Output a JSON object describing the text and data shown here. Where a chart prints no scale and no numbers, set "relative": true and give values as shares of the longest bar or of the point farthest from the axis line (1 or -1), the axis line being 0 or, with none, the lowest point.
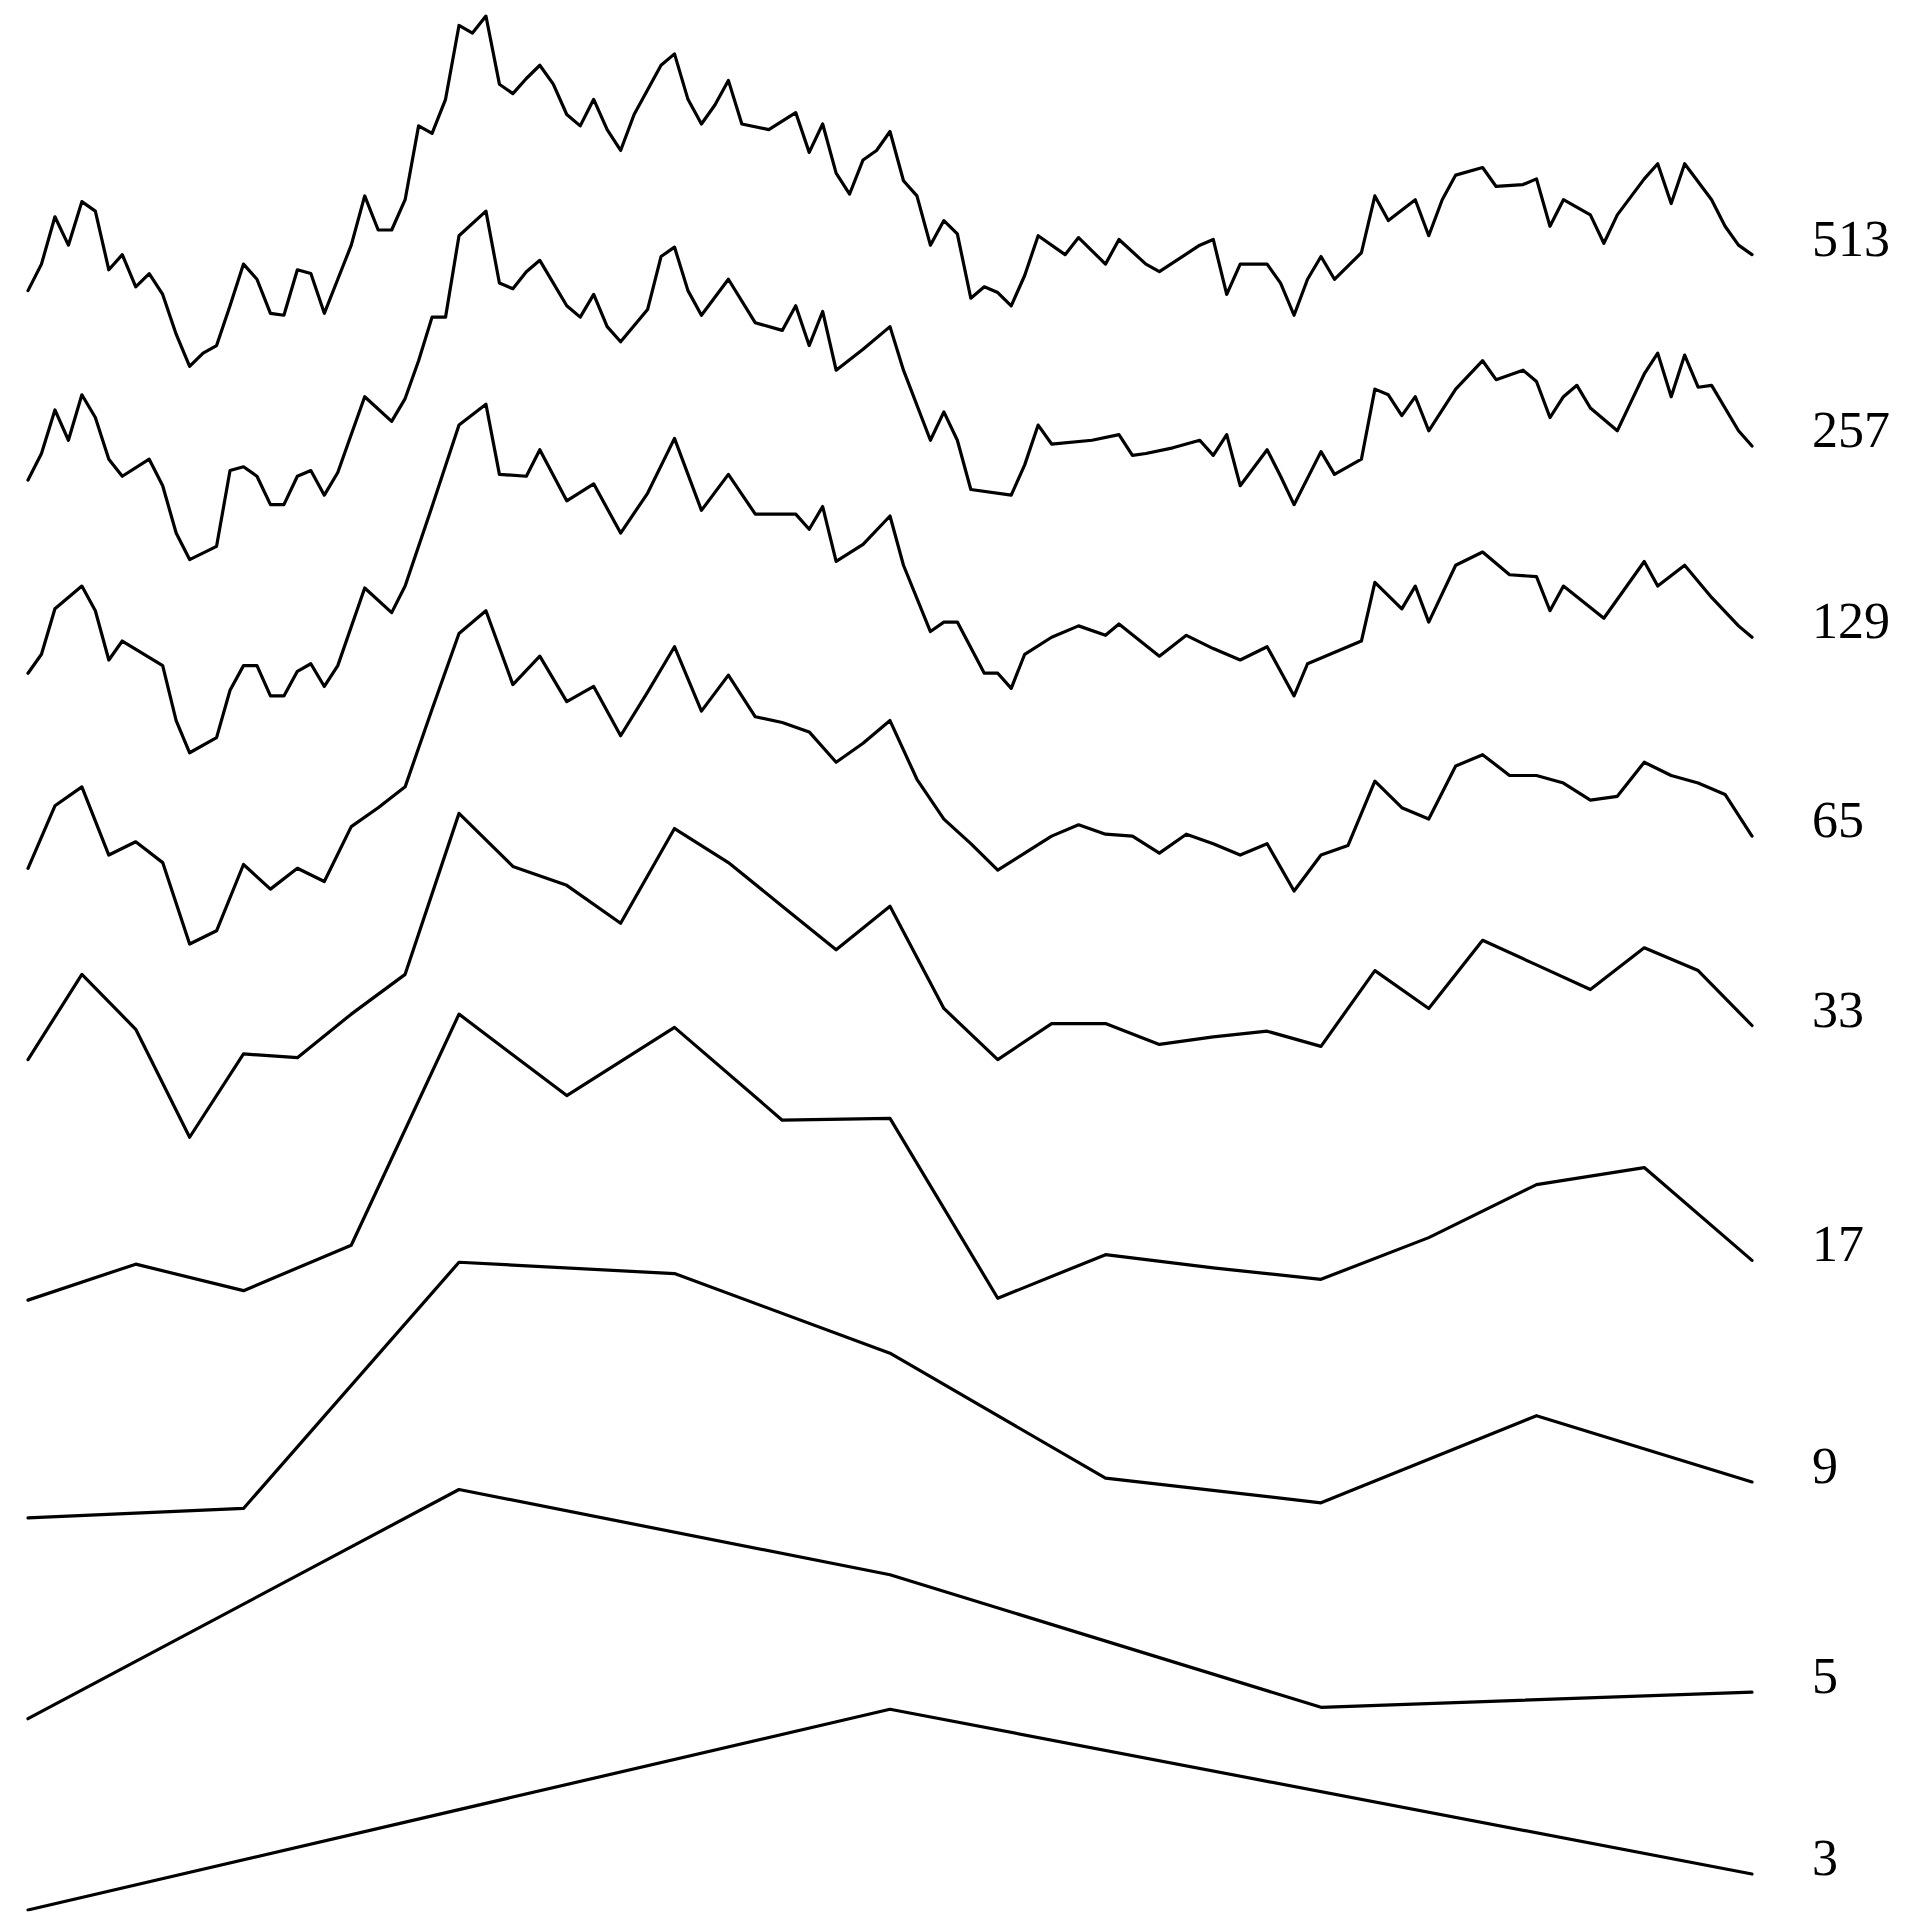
{
  "chart_data": {
    "type": "line",
    "relative": true,
    "line_style": "solid",
    "tick_labels": false,
    "categories": [
      null,
      null,
      null,
      null,
      null,
      null,
      null,
      null,
      null,
      null,
      null,
      null,
      null,
      null,
      null,
      null,
      null,
      null,
      null,
      null,
      null,
      null,
      null,
      null,
      null,
      null,
      null,
      null,
      null,
      null,
      null,
      null,
      null,
      null,
      null,
      null,
      null,
      null,
      null,
      null,
      null,
      null,
      null,
      null,
      null,
      null,
      null,
      null,
      null,
      null,
      null,
      null,
      null,
      null,
      null,
      null,
      null,
      null,
      null,
      null,
      null,
      null,
      null,
      null,
      null,
      null,
      null,
      null,
      null,
      null,
      null,
      null,
      null,
      null,
      null,
      null,
      null,
      null,
      null,
      null,
      null,
      null,
      null,
      null,
      null,
      null,
      null,
      null,
      null,
      null,
      null,
      null,
      null,
      null,
      null,
      null,
      null,
      null,
      null,
      null,
      null,
      null,
      null,
      null,
      null,
      null,
      null,
      null,
      null,
      null,
      null,
      null,
      null,
      null,
      null,
      null,
      null,
      null,
      null,
      null,
      null,
      null,
      null,
      null,
      null,
      null,
      null,
      null,
      null
    ],
    "series": [
      {
        "name": "513",
        "color": "#000000",
        "values": [
          0.855,
          0.869,
          0.894,
          0.879,
          0.902,
          0.897,
          0.866,
          0.874,
          0.857,
          0.864,
          0.853,
          0.832,
          0.815,
          0.822,
          0.826,
          0.847,
          0.869,
          0.861,
          0.843,
          0.842,
          0.866,
          0.864,
          0.843,
          0.861,
          0.879,
          0.905,
          0.887,
          0.887,
          0.903,
          0.942,
          0.938,
          0.956,
          0.995,
          0.991,
          1,
          0.964,
          0.959,
          0.967,
          0.974,
          0.964,
          0.948,
          0.942,
          0.956,
          0.94,
          0.929,
          0.948,
          null,
          0.974,
          0.98,
          0.956,
          0.943,
          0.953,
          0.966,
          0.943,
          null,
          0.94,
          null,
          0.949,
          0.928,
          0.943,
          0.917,
          0.906,
          0.924,
          0.929,
          0.939,
          0.913,
          0.905,
          0.879,
          0.892,
          0.885,
          0.851,
          0.857,
          0.854,
          0.847,
          0.863,
          0.884,
          null,
          0.874,
          0.883,
          0.876,
          0.869,
          0.882,
          null,
          0.869,
          0.865,
          null,
          null,
          0.879,
          0.882,
          0.853,
          0.869,
          null,
          0.869,
          0.859,
          0.842,
          0.861,
          0.873,
          0.861,
          null,
          0.875,
          0.905,
          0.892,
          null,
          0.903,
          0.884,
          0.903,
          0.916,
          null,
          0.92,
          0.91,
          null,
          0.911,
          0.914,
          0.889,
          0.903,
          null,
          0.895,
          0.88,
          0.895,
          null,
          0.914,
          0.922,
          0.901,
          0.922,
          null,
          0.903,
          0.889,
          0.879,
          0.874
        ]
      },
      {
        "name": "257",
        "color": "#000000",
        "values": [
          0.755,
          0.769,
          0.792,
          0.776,
          0.8,
          0.788,
          0.766,
          0.757,
          null,
          0.766,
          0.752,
          0.727,
          0.713,
          null,
          0.72,
          0.76,
          0.762,
          0.757,
          0.742,
          0.742,
          0.757,
          0.76,
          0.747,
          0.759,
          0.779,
          0.799,
          null,
          0.786,
          0.798,
          0.818,
          0.841,
          0.841,
          0.884,
          null,
          0.897,
          0.859,
          0.856,
          0.865,
          0.871,
          null,
          0.847,
          0.841,
          0.853,
          0.836,
          0.828,
          null,
          0.845,
          0.873,
          0.878,
          0.855,
          0.842,
          null,
          0.861,
          null,
          0.838,
          null,
          0.834,
          0.847,
          0.826,
          0.844,
          0.813,
          null,
          0.824,
          null,
          0.836,
          0.813,
          null,
          0.776,
          0.791,
          0.776,
          0.75,
          null,
          null,
          0.747,
          0.763,
          0.784,
          0.774,
          null,
          null,
          0.776,
          null,
          0.779,
          0.768,
          0.769,
          null,
          0.772,
          null,
          0.776,
          0.768,
          0.779,
          0.752,
          null,
          0.771,
          0.757,
          0.742,
          null,
          0.77,
          0.758,
          null,
          0.766,
          0.803,
          0.8,
          0.789,
          0.799,
          0.781,
          null,
          0.803,
          null,
          0.818,
          0.808,
          null,
          0.813,
          0.807,
          0.788,
          0.799,
          0.805,
          0.793,
          null,
          0.781,
          0.796,
          0.811,
          0.822,
          0.799,
          0.821,
          0.804,
          0.805,
          null,
          0.781,
          0.773
        ]
      },
      {
        "name": "129",
        "color": "#000000",
        "values": [
          0.653,
          0.663,
          0.687,
          null,
          0.699,
          0.686,
          0.66,
          0.67,
          null,
          null,
          0.657,
          0.628,
          0.611,
          null,
          0.619,
          0.644,
          0.657,
          0.657,
          0.641,
          0.641,
          0.654,
          0.658,
          0.646,
          0.657,
          null,
          0.698,
          null,
          0.685,
          0.699,
          null,
          0.741,
          null,
          0.784,
          null,
          0.795,
          0.758,
          null,
          0.757,
          0.771,
          null,
          0.744,
          null,
          0.753,
          null,
          0.727,
          null,
          0.748,
          null,
          0.777,
          null,
          0.739,
          null,
          0.758,
          null,
          0.737,
          null,
          null,
          0.737,
          0.729,
          0.741,
          0.712,
          null,
          0.721,
          null,
          0.736,
          0.71,
          null,
          0.675,
          0.68,
          0.68,
          null,
          0.653,
          0.653,
          0.645,
          0.663,
          null,
          0.672,
          null,
          0.678,
          null,
          0.673,
          0.679,
          null,
          null,
          0.662,
          null,
          0.673,
          null,
          0.666,
          null,
          0.66,
          null,
          0.667,
          null,
          0.641,
          0.658,
          null,
          null,
          null,
          0.67,
          0.701,
          null,
          0.687,
          0.699,
          0.68,
          null,
          0.71,
          null,
          0.717,
          null,
          0.705,
          null,
          0.704,
          0.686,
          0.699,
          null,
          null,
          0.682,
          null,
          null,
          0.712,
          0.699,
          null,
          0.71,
          null,
          0.693,
          null,
          0.678,
          0.672
        ]
      },
      {
        "name": "65",
        "color": "#000000",
        "values": [
          0.55,
          null,
          0.583,
          null,
          0.593,
          null,
          0.557,
          null,
          0.564,
          null,
          0.553,
          null,
          0.51,
          null,
          0.517,
          null,
          0.552,
          null,
          0.539,
          null,
          0.55,
          null,
          0.543,
          null,
          0.572,
          null,
          0.582,
          null,
          0.593,
          null,
          0.634,
          null,
          0.674,
          null,
          0.686,
          null,
          0.647,
          null,
          0.662,
          null,
          0.638,
          null,
          0.646,
          null,
          0.62,
          null,
          0.643,
          null,
          0.667,
          null,
          0.633,
          null,
          0.652,
          null,
          0.63,
          null,
          0.627,
          null,
          0.622,
          null,
          0.606,
          null,
          0.616,
          null,
          0.628,
          null,
          0.597,
          null,
          0.576,
          null,
          0.563,
          null,
          0.549,
          null,
          0.558,
          null,
          0.567,
          null,
          0.573,
          null,
          0.568,
          null,
          0.567,
          null,
          0.558,
          null,
          0.568,
          null,
          0.563,
          null,
          0.557,
          null,
          0.563,
          null,
          0.538,
          null,
          0.557,
          null,
          0.562,
          null,
          0.596,
          null,
          0.582,
          null,
          0.576,
          null,
          0.604,
          null,
          0.61,
          null,
          0.599,
          null,
          0.599,
          null,
          0.595,
          null,
          0.586,
          null,
          0.588,
          null,
          0.606,
          null,
          0.599,
          null,
          0.595,
          null,
          0.589,
          null,
          0.567
        ]
      },
      {
        "name": "33",
        "color": "#000000",
        "values": [
          0.449,
          null,
          null,
          null,
          0.494,
          null,
          null,
          null,
          0.465,
          null,
          null,
          null,
          0.408,
          null,
          null,
          null,
          0.452,
          null,
          null,
          null,
          0.45,
          null,
          null,
          null,
          0.473,
          null,
          null,
          null,
          0.494,
          null,
          null,
          null,
          0.579,
          null,
          null,
          null,
          0.551,
          null,
          null,
          null,
          0.541,
          null,
          null,
          null,
          0.521,
          null,
          null,
          null,
          0.571,
          null,
          null,
          null,
          0.553,
          null,
          null,
          null,
          0.53,
          null,
          null,
          null,
          0.507,
          null,
          null,
          null,
          0.53,
          null,
          null,
          null,
          0.476,
          null,
          null,
          null,
          0.449,
          null,
          null,
          null,
          0.468,
          null,
          null,
          null,
          0.468,
          null,
          null,
          null,
          0.457,
          null,
          null,
          null,
          0.461,
          null,
          null,
          null,
          0.464,
          null,
          null,
          null,
          0.456,
          null,
          null,
          null,
          0.496,
          null,
          null,
          null,
          0.476,
          null,
          null,
          null,
          0.512,
          null,
          null,
          null,
          0.499,
          null,
          null,
          null,
          0.486,
          null,
          null,
          null,
          0.508,
          null,
          null,
          null,
          0.496,
          null,
          null,
          null,
          0.467
        ]
      },
      {
        "name": "17",
        "color": "#000000",
        "values": [
          0.322,
          null,
          null,
          null,
          null,
          null,
          null,
          null,
          0.341,
          null,
          null,
          null,
          null,
          null,
          null,
          null,
          0.327,
          null,
          null,
          null,
          null,
          null,
          null,
          null,
          0.351,
          null,
          null,
          null,
          null,
          null,
          null,
          null,
          0.473,
          null,
          null,
          null,
          null,
          null,
          null,
          null,
          0.43,
          null,
          null,
          null,
          null,
          null,
          null,
          null,
          0.466,
          null,
          null,
          null,
          null,
          null,
          null,
          null,
          0.417,
          null,
          null,
          null,
          null,
          null,
          null,
          null,
          0.418,
          null,
          null,
          null,
          null,
          null,
          null,
          null,
          0.323,
          null,
          null,
          null,
          null,
          null,
          null,
          null,
          0.346,
          null,
          null,
          null,
          null,
          null,
          null,
          null,
          0.339,
          null,
          null,
          null,
          null,
          null,
          null,
          null,
          0.333,
          null,
          null,
          null,
          null,
          null,
          null,
          null,
          0.355,
          null,
          null,
          null,
          null,
          null,
          null,
          null,
          0.383,
          null,
          null,
          null,
          null,
          null,
          null,
          null,
          0.392,
          null,
          null,
          null,
          null,
          null,
          null,
          null,
          0.343
        ]
      },
      {
        "name": "9",
        "color": "#000000",
        "values": [
          0.207,
          null,
          null,
          null,
          null,
          null,
          null,
          null,
          null,
          null,
          null,
          null,
          null,
          null,
          null,
          null,
          0.212,
          null,
          null,
          null,
          null,
          null,
          null,
          null,
          null,
          null,
          null,
          null,
          null,
          null,
          null,
          null,
          0.342,
          null,
          null,
          null,
          null,
          null,
          null,
          null,
          null,
          null,
          null,
          null,
          null,
          null,
          null,
          null,
          0.336,
          null,
          null,
          null,
          null,
          null,
          null,
          null,
          null,
          null,
          null,
          null,
          null,
          null,
          null,
          null,
          0.294,
          null,
          null,
          null,
          null,
          null,
          null,
          null,
          null,
          null,
          null,
          null,
          null,
          null,
          null,
          null,
          0.228,
          null,
          null,
          null,
          null,
          null,
          null,
          null,
          null,
          null,
          null,
          null,
          null,
          null,
          null,
          null,
          0.215,
          null,
          null,
          null,
          null,
          null,
          null,
          null,
          null,
          null,
          null,
          null,
          null,
          null,
          null,
          null,
          0.261,
          null,
          null,
          null,
          null,
          null,
          null,
          null,
          null,
          null,
          null,
          null,
          null,
          null,
          null,
          null,
          0.226
        ]
      },
      {
        "name": "5",
        "color": "#000000",
        "values": [
          0.101,
          null,
          null,
          null,
          null,
          null,
          null,
          null,
          null,
          null,
          null,
          null,
          null,
          null,
          null,
          null,
          null,
          null,
          null,
          null,
          null,
          null,
          null,
          null,
          null,
          null,
          null,
          null,
          null,
          null,
          null,
          null,
          0.222,
          null,
          null,
          null,
          null,
          null,
          null,
          null,
          null,
          null,
          null,
          null,
          null,
          null,
          null,
          null,
          null,
          null,
          null,
          null,
          null,
          null,
          null,
          null,
          null,
          null,
          null,
          null,
          null,
          null,
          null,
          null,
          0.177,
          null,
          null,
          null,
          null,
          null,
          null,
          null,
          null,
          null,
          null,
          null,
          null,
          null,
          null,
          null,
          null,
          null,
          null,
          null,
          null,
          null,
          null,
          null,
          null,
          null,
          null,
          null,
          null,
          null,
          null,
          null,
          0.107,
          null,
          null,
          null,
          null,
          null,
          null,
          null,
          null,
          null,
          null,
          null,
          null,
          null,
          null,
          null,
          null,
          null,
          null,
          null,
          null,
          null,
          null,
          null,
          null,
          null,
          null,
          null,
          null,
          null,
          null,
          null,
          0.115
        ]
      },
      {
        "name": "3",
        "color": "#000000",
        "values": [
          0,
          null,
          null,
          null,
          null,
          null,
          null,
          null,
          null,
          null,
          null,
          null,
          null,
          null,
          null,
          null,
          null,
          null,
          null,
          null,
          null,
          null,
          null,
          null,
          null,
          null,
          null,
          null,
          null,
          null,
          null,
          null,
          null,
          null,
          null,
          null,
          null,
          null,
          null,
          null,
          null,
          null,
          null,
          null,
          null,
          null,
          null,
          null,
          null,
          null,
          null,
          null,
          null,
          null,
          null,
          null,
          null,
          null,
          null,
          null,
          null,
          null,
          null,
          null,
          0.106,
          null,
          null,
          null,
          null,
          null,
          null,
          null,
          null,
          null,
          null,
          null,
          null,
          null,
          null,
          null,
          null,
          null,
          null,
          null,
          null,
          null,
          null,
          null,
          null,
          null,
          null,
          null,
          null,
          null,
          null,
          null,
          null,
          null,
          null,
          null,
          null,
          null,
          null,
          null,
          null,
          null,
          null,
          null,
          null,
          null,
          null,
          null,
          null,
          null,
          null,
          null,
          null,
          null,
          null,
          null,
          null,
          null,
          null,
          null,
          null,
          null,
          null,
          null,
          0.019
        ]
      }
    ]
  }
}
